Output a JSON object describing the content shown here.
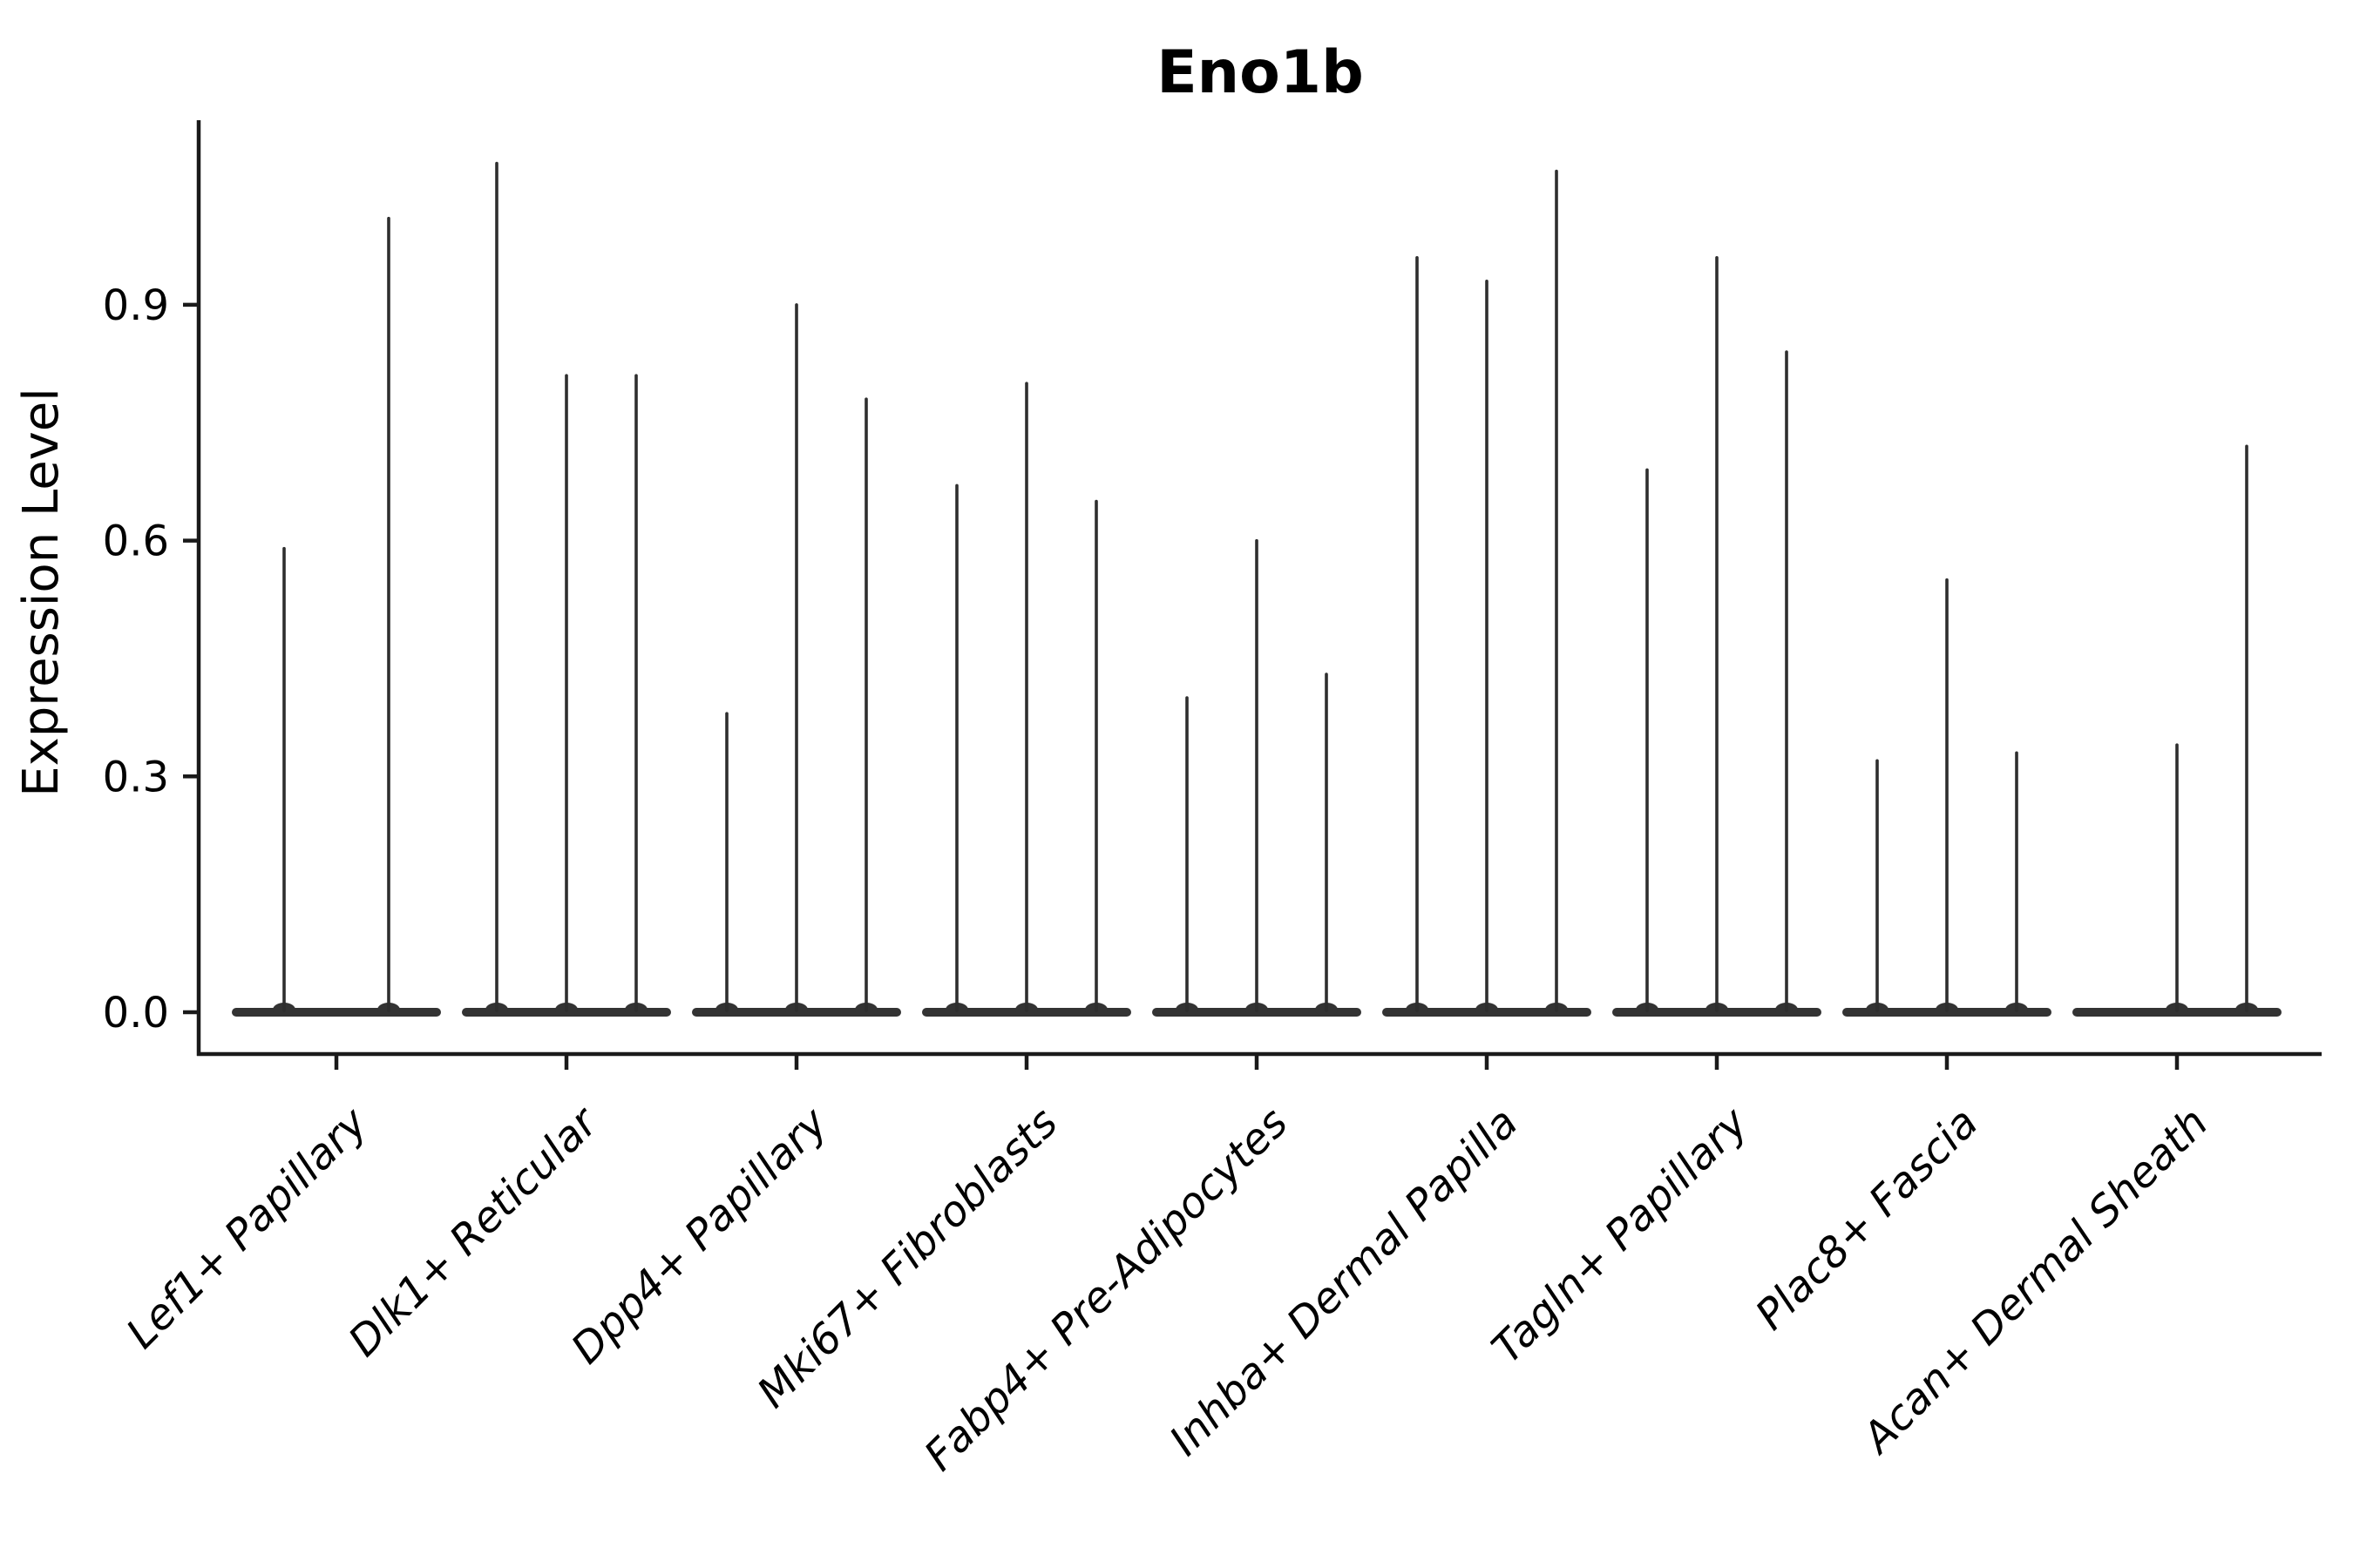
{
  "title": "Eno1b",
  "chart_data": {
    "type": "violin",
    "title": "Eno1b",
    "ylabel": "Expression Level",
    "xlabel": "",
    "ylim": [
      -0.05,
      1.13
    ],
    "grid": false,
    "legend": false,
    "yticks": [
      "0.0",
      "0.3",
      "0.6",
      "0.9"
    ],
    "ytick_values": [
      0.0,
      0.3,
      0.6,
      0.9
    ],
    "categories": [
      "Lef1+ Papillary",
      "Dlk1+ Reticular",
      "Dpp4+ Papillary",
      "Mki67+ Fibroblasts",
      "Fabp4+ Pre-Adipocytes",
      "Inhba+ Dermal Papilla",
      "Tagln+ Papillary",
      "Plac8+ Fascia",
      "Acan+ Dermal Sheath"
    ],
    "series": [
      {
        "category": "Lef1+ Papillary",
        "violin_maxima": [
          0.59,
          1.01
        ]
      },
      {
        "category": "Dlk1+ Reticular",
        "violin_maxima": [
          1.08,
          0.81,
          0.81
        ]
      },
      {
        "category": "Dpp4+ Papillary",
        "violin_maxima": [
          0.38,
          0.9,
          0.78
        ]
      },
      {
        "category": "Mki67+ Fibroblasts",
        "violin_maxima": [
          0.67,
          0.8,
          0.65
        ]
      },
      {
        "category": "Fabp4+ Pre-Adipocytes",
        "violin_maxima": [
          0.4,
          0.6,
          0.43
        ]
      },
      {
        "category": "Inhba+ Dermal Papilla",
        "violin_maxima": [
          0.96,
          0.93,
          1.07
        ]
      },
      {
        "category": "Tagln+ Papillary",
        "violin_maxima": [
          0.69,
          0.96,
          0.84
        ]
      },
      {
        "category": "Plac8+ Fascia",
        "violin_maxima": [
          0.32,
          0.55,
          0.33
        ]
      },
      {
        "category": "Acan+ Dermal Sheath",
        "violin_maxima": [
          0.0,
          0.34,
          0.72
        ]
      }
    ],
    "style": {
      "line_color": "#2e2e2e",
      "body_color": "#333333",
      "spine_color": "#1a1a1a",
      "text_color": "#000000",
      "background": "#ffffff",
      "xlabel_rotation_deg": 45,
      "xlabels_italic": true
    }
  }
}
